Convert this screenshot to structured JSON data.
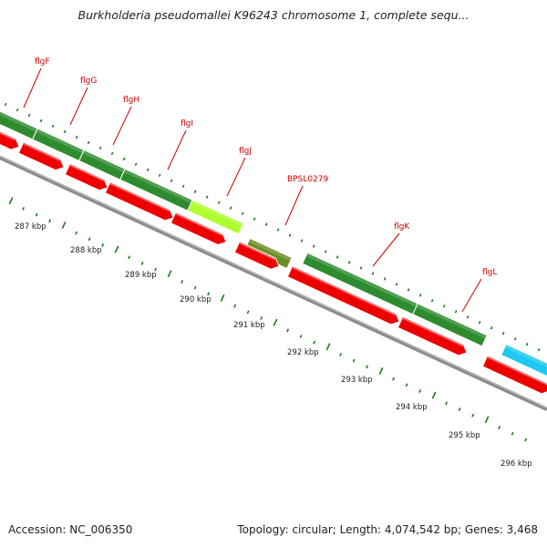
{
  "title": "Burkholderia pseudomallei K96243 chromosome 1, complete sequ...",
  "accession": "Accession: NC_006350",
  "stats": "Topology: circular; Length: 4,074,542 bp; Genes: 3,468",
  "colors": {
    "gene": "#2e8b2e",
    "gene_highlight": "#adff2f",
    "gene_olive": "#6b8e23",
    "cds": "#ee0000",
    "other_feature": "#1ec8f0",
    "backbone": "#8a8a8a",
    "tick": "#1a7a1a",
    "label": "#cc0000"
  },
  "kbp_labels": [
    "287 kbp",
    "288 kbp",
    "289 kbp",
    "290 kbp",
    "291 kbp",
    "292 kbp",
    "293 kbp",
    "294 kbp",
    "295 kbp",
    "296 kbp"
  ],
  "genes": [
    {
      "name": "flgF"
    },
    {
      "name": "flgG"
    },
    {
      "name": "flgH"
    },
    {
      "name": "flgI"
    },
    {
      "name": "flgJ"
    },
    {
      "name": "BPSL0279"
    },
    {
      "name": "flgK"
    },
    {
      "name": "flgL"
    }
  ]
}
